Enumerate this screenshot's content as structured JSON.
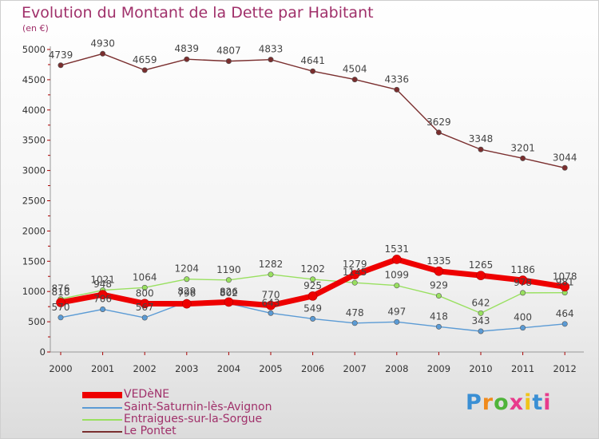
{
  "title": "Evolution du Montant de la Dette par Habitant",
  "unit": "(en €)",
  "logo": "Proxiti",
  "chart_data": {
    "type": "line",
    "title": "Evolution du Montant de la Dette par Habitant",
    "ylabel": "(en €)",
    "xlabel": "",
    "ylim": [
      0,
      5000
    ],
    "yticks": [
      0,
      500,
      1000,
      1500,
      2000,
      2500,
      3000,
      3500,
      4000,
      4500,
      5000
    ],
    "x": [
      "2000",
      "2001",
      "2002",
      "2003",
      "2004",
      "2005",
      "2006",
      "2007",
      "2008",
      "2009",
      "2010",
      "2011",
      "2012"
    ],
    "grid": false,
    "legend_position": "bottom-left",
    "series": [
      {
        "name": "VEDèNE",
        "color": "#ee0000",
        "values": [
          818,
          948,
          800,
          796,
          826,
          770,
          925,
          1279,
          1531,
          1335,
          1265,
          1186,
          1078
        ]
      },
      {
        "name": "Saint-Saturnin-lès-Avignon",
        "color": "#5b9bd5",
        "values": [
          570,
          706,
          567,
          829,
          802,
          643,
          549,
          478,
          497,
          418,
          343,
          400,
          464
        ]
      },
      {
        "name": "Entraigues-sur-la-Sorgue",
        "color": "#99e060",
        "values": [
          876,
          1021,
          1064,
          1204,
          1190,
          1282,
          1202,
          1145,
          1099,
          929,
          642,
          978,
          981
        ]
      },
      {
        "name": "Le Pontet",
        "color": "#7a2e2e",
        "values": [
          4739,
          4930,
          4659,
          4839,
          4807,
          4833,
          4641,
          4504,
          4336,
          3629,
          3348,
          3201,
          3044
        ]
      }
    ]
  }
}
